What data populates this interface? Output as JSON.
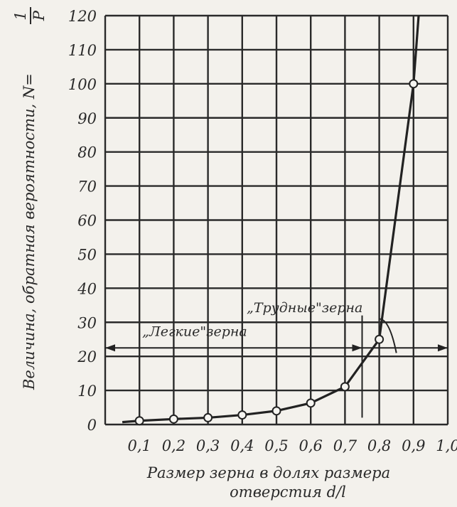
{
  "chart_data": {
    "type": "line",
    "xlabel_line1": "Размер зерна в долях размера",
    "xlabel_line2": "отверстия d/l",
    "ylabel": "Величина, обратная вероятности, N=",
    "ylabel_formula_num": "1",
    "ylabel_formula_den": "P",
    "x_tick_labels": [
      "0,1",
      "0,2",
      "0,3",
      "0,4",
      "0,5",
      "0,6",
      "0,7",
      "0,8",
      "0,9",
      "1,0"
    ],
    "y_tick_labels": [
      "0",
      "10",
      "20",
      "30",
      "40",
      "50",
      "60",
      "70",
      "80",
      "90",
      "100",
      "110",
      "120"
    ],
    "xlim": [
      0.0,
      1.0
    ],
    "ylim": [
      0,
      120
    ],
    "grid": true,
    "series": [
      {
        "x": [
          0.1,
          0.2,
          0.3,
          0.4,
          0.5,
          0.6,
          0.7,
          0.8,
          0.9
        ],
        "y": [
          1.1,
          1.6,
          2.0,
          2.8,
          4.0,
          6.3,
          11.1,
          25.0,
          100.0
        ]
      }
    ],
    "annotations": {
      "light_grains": "„Легкие\"зерна",
      "hard_grains": "„Трудные\"зерна",
      "boundary_x": 0.75
    }
  }
}
